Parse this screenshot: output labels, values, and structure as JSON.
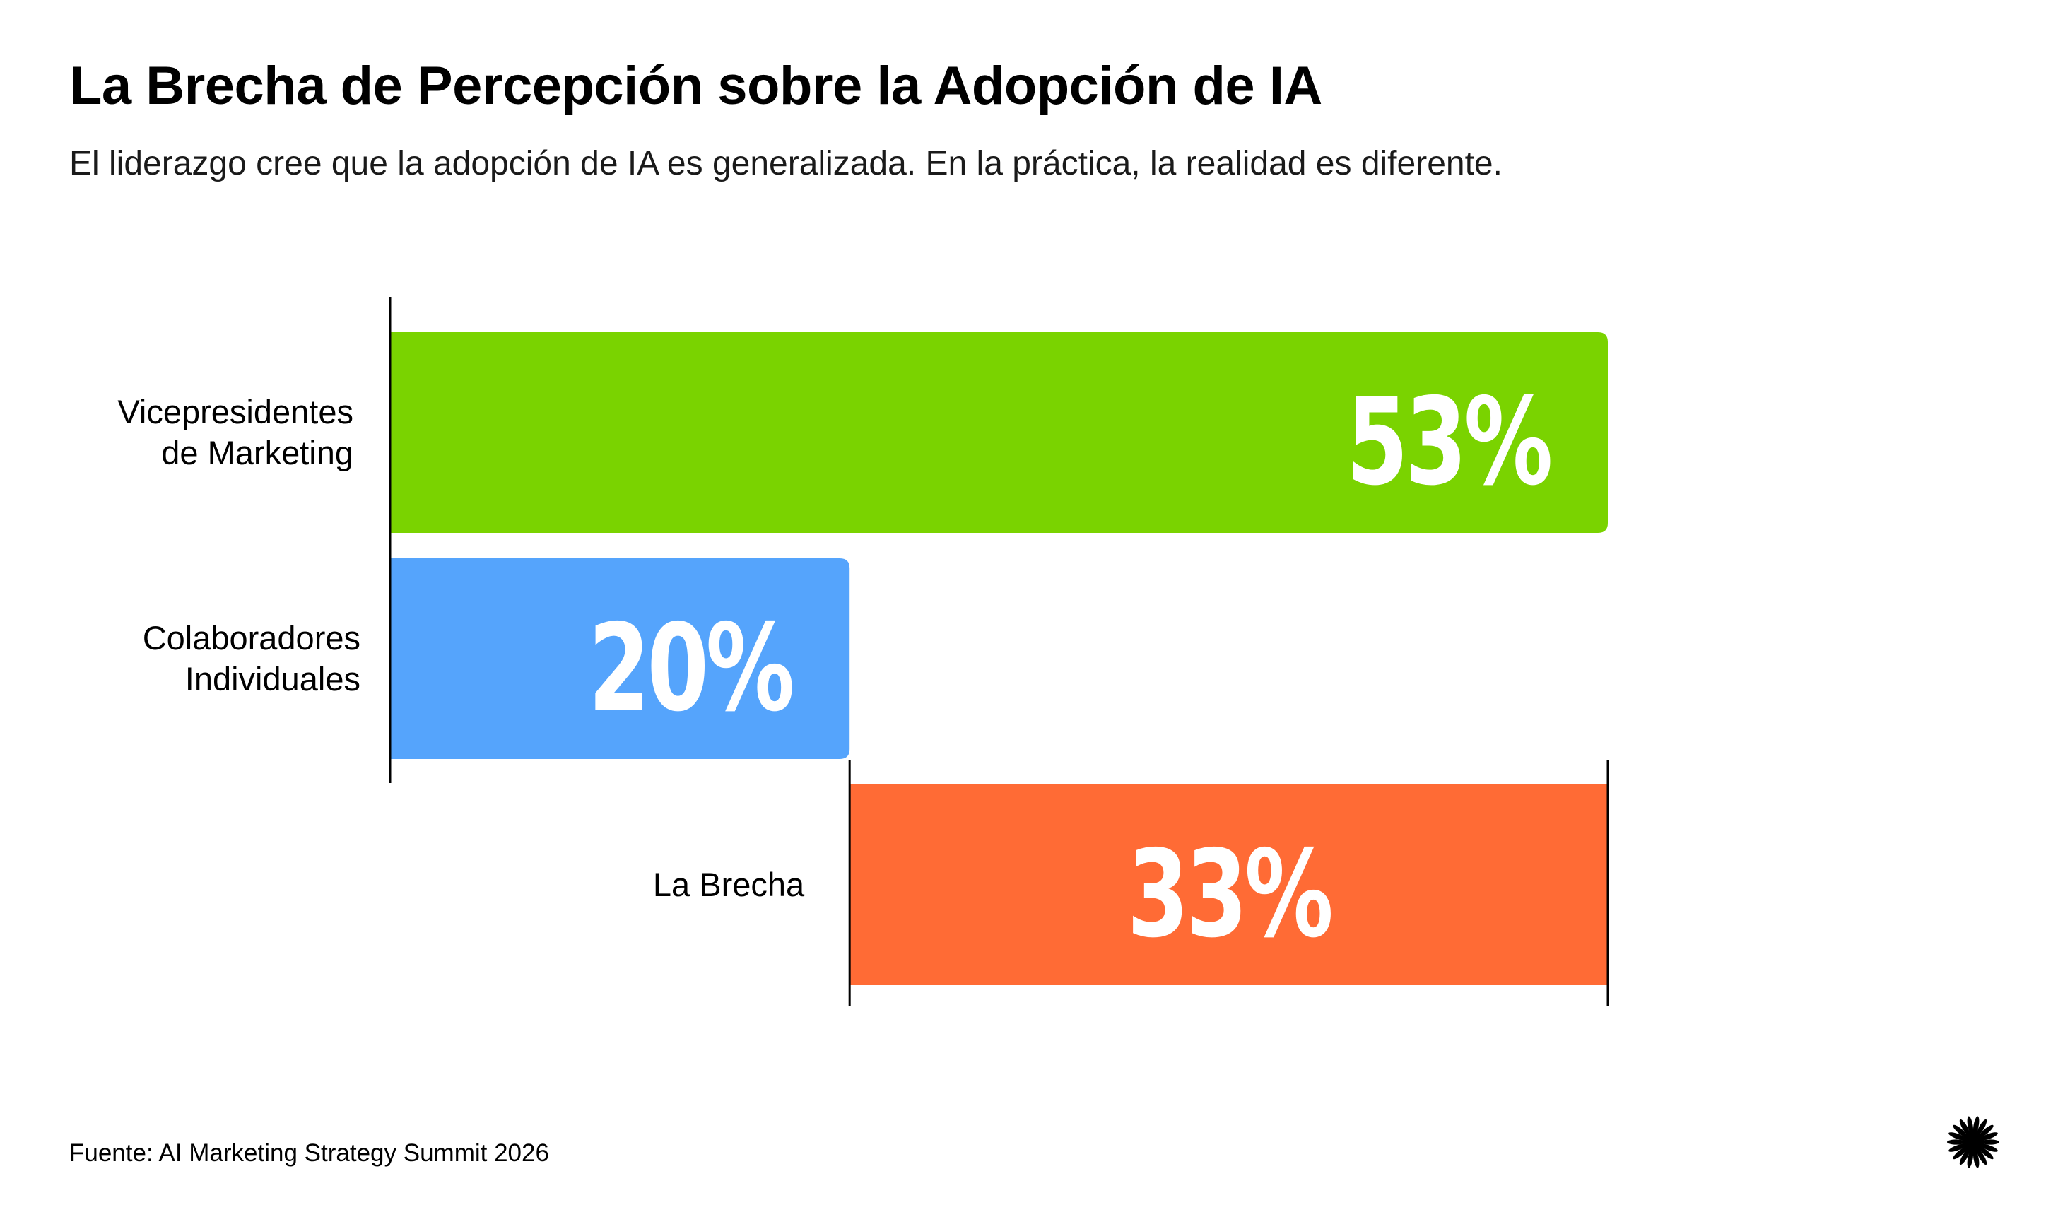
{
  "header": {
    "title": "La Brecha de Percepción sobre la Adopción de IA",
    "subtitle": "El liderazgo cree que la adopción de IA es generalizada. En la práctica, la realidad es diferente."
  },
  "footer": {
    "source": "Fuente: AI Marketing Strategy Summit 2026"
  },
  "logo": {
    "icon": "starburst-icon"
  },
  "chart_data": {
    "type": "bar",
    "orientation": "horizontal",
    "title": "La Brecha de Percepción sobre la Adopción de IA",
    "xlabel": "",
    "ylabel": "",
    "xlim": [
      0,
      53
    ],
    "grid": false,
    "legend": "none",
    "bars": [
      {
        "name": "vicepresidentes",
        "label_lines": [
          "Vicepresidentes",
          "de Marketing"
        ],
        "value": 53,
        "start": 0,
        "display": "53%",
        "color": "#7ad300"
      },
      {
        "name": "colaboradores",
        "label_lines": [
          "Colaboradores",
          "Individuales"
        ],
        "value": 20,
        "start": 0,
        "display": "20%",
        "color": "#55a4fc"
      },
      {
        "name": "brecha",
        "label_lines": [
          "La Brecha"
        ],
        "value": 33,
        "start": 20,
        "display": "33%",
        "color": "#ff6b35"
      }
    ]
  }
}
